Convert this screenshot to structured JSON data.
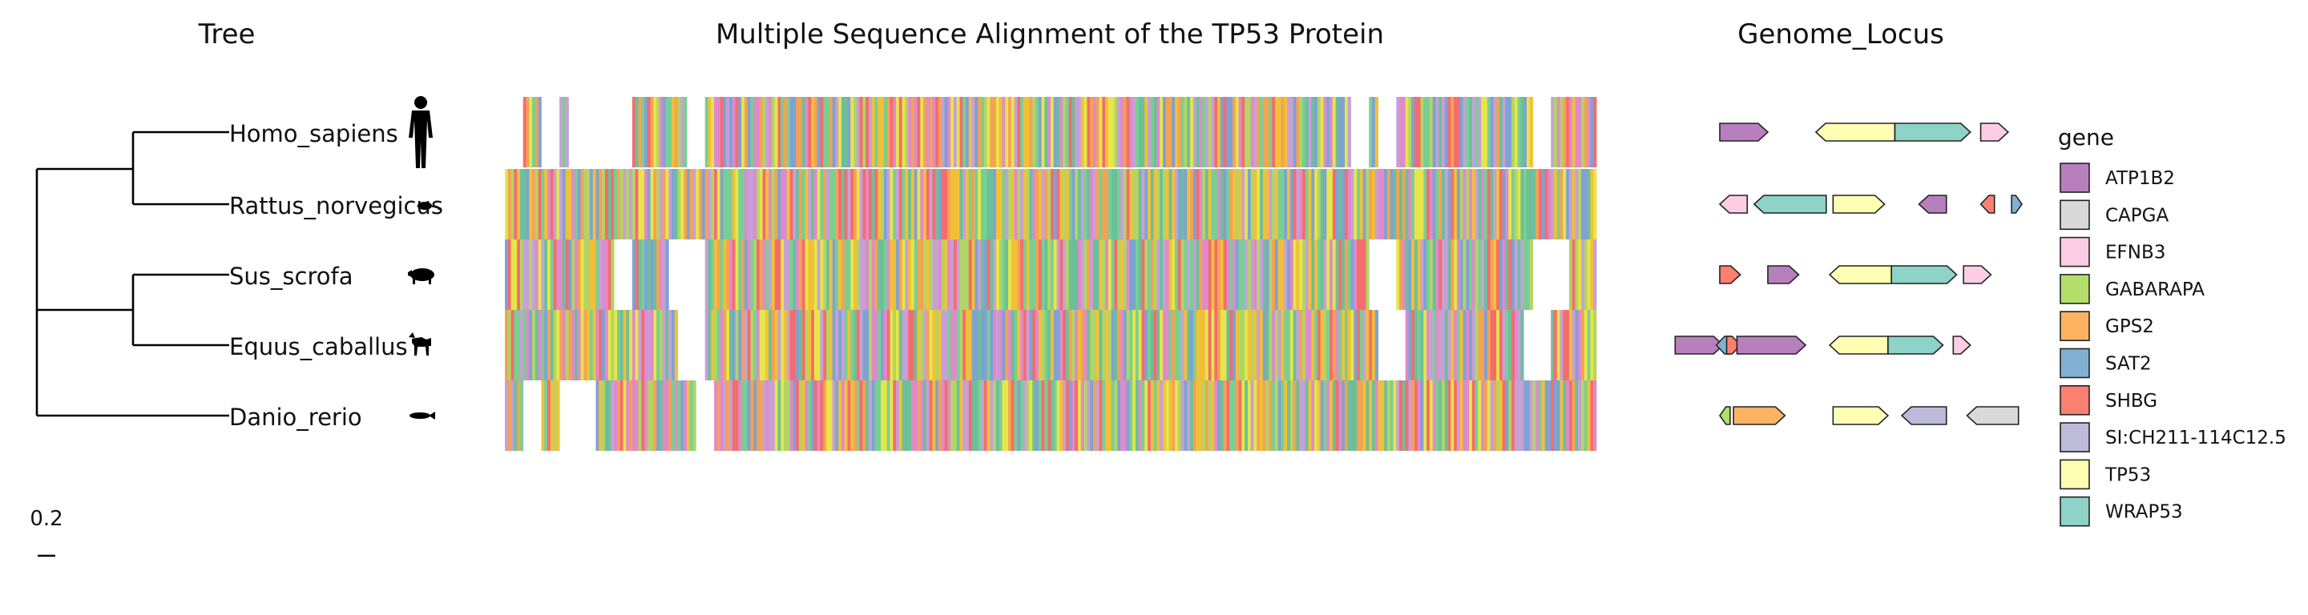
{
  "titles": {
    "tree": "Tree",
    "msa": "Multiple Sequence Alignment of the TP53 Protein",
    "locus": "Genome_Locus"
  },
  "chart_data": [
    {
      "type": "tree",
      "taxa": [
        "Homo_sapiens",
        "Rattus_norvegicus",
        "Sus_scrofa",
        "Equus_caballus",
        "Danio_rerio"
      ],
      "scale_bar_label": "0.2",
      "silhouette_icons": [
        "human-silhouette-icon",
        "rat-silhouette-icon",
        "pig-silhouette-icon",
        "horse-silhouette-icon",
        "fish-silhouette-icon"
      ]
    },
    {
      "type": "heatmap",
      "title": "Multiple Sequence Alignment of the TP53 Protein",
      "rows": [
        "Homo_sapiens",
        "Rattus_norvegicus",
        "Sus_scrofa",
        "Equus_caballus",
        "Danio_rerio"
      ],
      "columns": 120,
      "palette": [
        "#f46d6d",
        "#f2c038",
        "#79cf93",
        "#7fa2d4",
        "#e6e64a",
        "#b2d566",
        "#e08acb",
        "#f4a352",
        "#6dbf9a",
        "#c7a0d8"
      ]
    },
    {
      "type": "gene-arrows",
      "title": "Genome_Locus",
      "legend_title": "gene",
      "legend": [
        {
          "gene": "ATP1B2",
          "color": "#B87FBE"
        },
        {
          "gene": "CAPGA",
          "color": "#D9D9D9"
        },
        {
          "gene": "EFNB3",
          "color": "#FCCDE5"
        },
        {
          "gene": "GABARAPA",
          "color": "#B3DE69"
        },
        {
          "gene": "GPS2",
          "color": "#FDB462"
        },
        {
          "gene": "SAT2",
          "color": "#80B1D3"
        },
        {
          "gene": "SHBG",
          "color": "#FB8072"
        },
        {
          "gene": "SI:CH211-114C12.5",
          "color": "#BEBADA"
        },
        {
          "gene": "TP53",
          "color": "#FFFFB3"
        },
        {
          "gene": "WRAP53",
          "color": "#8DD3C7"
        }
      ],
      "tracks": [
        {
          "taxon": "Homo_sapiens",
          "genes": [
            {
              "gene": "ATP1B2",
              "start": 0.0,
              "end": 0.14,
              "strand": "+"
            },
            {
              "gene": "TP53",
              "start": 0.28,
              "end": 0.51,
              "strand": "-"
            },
            {
              "gene": "WRAP53",
              "start": 0.51,
              "end": 0.73,
              "strand": "+"
            },
            {
              "gene": "EFNB3",
              "start": 0.76,
              "end": 0.84,
              "strand": "+"
            }
          ]
        },
        {
          "taxon": "Rattus_norvegicus",
          "genes": [
            {
              "gene": "EFNB3",
              "start": 0.0,
              "end": 0.08,
              "strand": "-"
            },
            {
              "gene": "WRAP53",
              "start": 0.1,
              "end": 0.31,
              "strand": "-"
            },
            {
              "gene": "TP53",
              "start": 0.33,
              "end": 0.48,
              "strand": "+"
            },
            {
              "gene": "ATP1B2",
              "start": 0.58,
              "end": 0.66,
              "strand": "-"
            },
            {
              "gene": "SHBG",
              "start": 0.76,
              "end": 0.8,
              "strand": "-"
            },
            {
              "gene": "SAT2",
              "start": 0.85,
              "end": 0.88,
              "strand": "+"
            }
          ]
        },
        {
          "taxon": "Sus_scrofa",
          "genes": [
            {
              "gene": "SHBG",
              "start": 0.0,
              "end": 0.06,
              "strand": "+"
            },
            {
              "gene": "ATP1B2",
              "start": 0.14,
              "end": 0.23,
              "strand": "+"
            },
            {
              "gene": "TP53",
              "start": 0.32,
              "end": 0.5,
              "strand": "-"
            },
            {
              "gene": "WRAP53",
              "start": 0.5,
              "end": 0.69,
              "strand": "+"
            },
            {
              "gene": "EFNB3",
              "start": 0.71,
              "end": 0.79,
              "strand": "+"
            }
          ]
        },
        {
          "taxon": "Equus_caballus",
          "genes": [
            {
              "gene": "ATP1B2",
              "start": -0.13,
              "end": 0.01,
              "strand": "+"
            },
            {
              "gene": "SAT2",
              "start": -0.01,
              "end": 0.03,
              "strand": "-"
            },
            {
              "gene": "SHBG",
              "start": 0.02,
              "end": 0.06,
              "strand": "+"
            },
            {
              "gene": "ATP1B2",
              "start": 0.05,
              "end": 0.25,
              "strand": "+"
            },
            {
              "gene": "TP53",
              "start": 0.32,
              "end": 0.49,
              "strand": "-"
            },
            {
              "gene": "WRAP53",
              "start": 0.49,
              "end": 0.65,
              "strand": "+"
            },
            {
              "gene": "EFNB3",
              "start": 0.68,
              "end": 0.73,
              "strand": "+"
            }
          ]
        },
        {
          "taxon": "Danio_rerio",
          "genes": [
            {
              "gene": "GABARAPA",
              "start": 0.0,
              "end": 0.03,
              "strand": "-"
            },
            {
              "gene": "GPS2",
              "start": 0.04,
              "end": 0.19,
              "strand": "+"
            },
            {
              "gene": "TP53",
              "start": 0.33,
              "end": 0.49,
              "strand": "+"
            },
            {
              "gene": "SI:CH211-114C12.5",
              "start": 0.53,
              "end": 0.66,
              "strand": "-"
            },
            {
              "gene": "CAPGA",
              "start": 0.72,
              "end": 0.87,
              "strand": "-"
            }
          ]
        }
      ]
    }
  ]
}
